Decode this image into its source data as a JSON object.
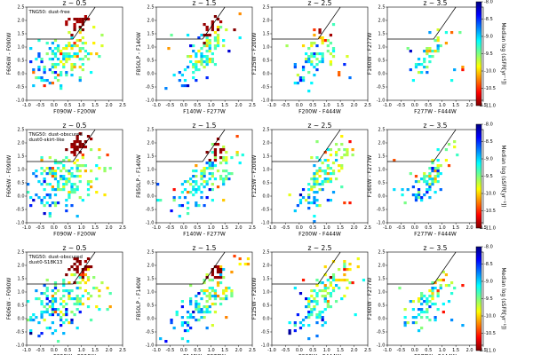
{
  "chart_data": {
    "type": "heatmap",
    "rows": [
      {
        "label_lines": [
          "TNG50: dust-free"
        ],
        "colorbar_label": "Median log (sSFR[yr⁻¹])",
        "panels": [
          {
            "title": "z ~ 0.5",
            "xlabel": "F090W - F200W",
            "ylabel": "F606W - F090W"
          },
          {
            "title": "z ~ 1.5",
            "xlabel": "F140W - F277W",
            "ylabel": "F850LP - F140W"
          },
          {
            "title": "z ~ 2.5",
            "xlabel": "F200W - F444W",
            "ylabel": "F125W - F200W"
          },
          {
            "title": "z ~ 3.5",
            "xlabel": "F277W - F444W",
            "ylabel": "F160W - F277W"
          }
        ]
      },
      {
        "label_lines": [
          "TNG50: dust-obscured",
          "dust0-skirt-like"
        ],
        "colorbar_label": "Median log (sSFR[yr⁻¹])",
        "panels": [
          {
            "title": "z ~ 0.5",
            "xlabel": "F090W - F200W",
            "ylabel": "F606W - F090W"
          },
          {
            "title": "z ~ 1.5",
            "xlabel": "F140W - F277W",
            "ylabel": "F850LP - F140W"
          },
          {
            "title": "z ~ 2.5",
            "xlabel": "F200W - F444W",
            "ylabel": "F125W - F200W"
          },
          {
            "title": "z ~ 3.5",
            "xlabel": "F277W - F444W",
            "ylabel": "F160W - F277W"
          }
        ]
      },
      {
        "label_lines": [
          "TNG50: dust-obscured",
          "dust0-S18K13"
        ],
        "colorbar_label": "Median log (sSFR[yr⁻¹])",
        "panels": [
          {
            "title": "z ~ 0.5",
            "xlabel": "F090W - F200W",
            "ylabel": "F606W - F090W"
          },
          {
            "title": "z ~ 1.5",
            "xlabel": "F140W - F277W",
            "ylabel": "F850LP - F140W"
          },
          {
            "title": "z ~ 2.5",
            "xlabel": "F200W - F444W",
            "ylabel": "F125W - F200W"
          },
          {
            "title": "z ~ 3.5",
            "xlabel": "F277W - F444W",
            "ylabel": "F160W - F277W"
          }
        ]
      }
    ],
    "xlim": [
      -1.0,
      2.5
    ],
    "ylim": [
      -1.0,
      2.5
    ],
    "xticks": [
      "-1.0",
      "-0.5",
      "0.0",
      "0.5",
      "1.0",
      "1.5",
      "2.0",
      "2.5"
    ],
    "yticks": [
      "-1.0",
      "-0.5",
      "0.0",
      "0.5",
      "1.0",
      "1.5",
      "2.0",
      "2.5"
    ],
    "quiescent_boundary": [
      [
        -1.0,
        1.3
      ],
      [
        0.69,
        1.3
      ],
      [
        1.5,
        2.5
      ]
    ],
    "colorbar": {
      "range": [
        -11.0,
        -8.0
      ],
      "ticks": [
        "-8.0",
        "-8.5",
        "-9.0",
        "-9.5",
        "-10.0",
        "-10.5",
        "-11.0"
      ],
      "colormap": "jet_r"
    },
    "distributions": [
      [
        {
          "sf_center": [
            0.35,
            0.55
          ],
          "sf_axis": [
            0.95,
            0.52
          ],
          "sf_len": 0.7,
          "sf_wid": 0.42,
          "n_sf": 150,
          "q_center": [
            0.92,
            1.95
          ],
          "q_axis": [
            0.5,
            0.5
          ],
          "q_len": 0.25,
          "q_wid": 0.18,
          "n_q": 34
        },
        {
          "sf_center": [
            0.7,
            0.6
          ],
          "sf_axis": [
            0.6,
            0.8
          ],
          "sf_len": 0.65,
          "sf_wid": 0.25,
          "n_sf": 100,
          "q_center": [
            1.05,
            1.75
          ],
          "q_axis": [
            0.6,
            0.8
          ],
          "q_len": 0.25,
          "q_wid": 0.15,
          "n_q": 20
        },
        {
          "sf_center": [
            0.6,
            0.7
          ],
          "sf_axis": [
            0.6,
            0.8
          ],
          "sf_len": 0.55,
          "sf_wid": 0.25,
          "n_sf": 70,
          "q_center": [
            0.95,
            1.45
          ],
          "q_axis": [
            0.6,
            0.8
          ],
          "q_len": 0.12,
          "q_wid": 0.1,
          "n_q": 3
        },
        {
          "sf_center": [
            0.5,
            0.6
          ],
          "sf_axis": [
            0.6,
            0.8
          ],
          "sf_len": 0.5,
          "sf_wid": 0.18,
          "n_sf": 40,
          "q_center": [
            0.6,
            1.4
          ],
          "q_axis": [
            0.6,
            0.8
          ],
          "q_len": 0.05,
          "q_wid": 0.05,
          "n_q": 0
        }
      ],
      [
        {
          "sf_center": [
            0.3,
            0.55
          ],
          "sf_axis": [
            0.9,
            0.5
          ],
          "sf_len": 0.8,
          "sf_wid": 0.48,
          "n_sf": 170,
          "q_center": [
            0.9,
            1.9
          ],
          "q_axis": [
            0.5,
            0.5
          ],
          "q_len": 0.25,
          "q_wid": 0.18,
          "n_q": 32
        },
        {
          "sf_center": [
            0.75,
            0.65
          ],
          "sf_axis": [
            0.65,
            0.75
          ],
          "sf_len": 0.8,
          "sf_wid": 0.32,
          "n_sf": 130,
          "q_center": [
            1.2,
            1.7
          ],
          "q_axis": [
            0.6,
            0.8
          ],
          "q_len": 0.25,
          "q_wid": 0.15,
          "n_q": 20
        },
        {
          "sf_center": [
            0.85,
            0.7
          ],
          "sf_axis": [
            0.6,
            0.8
          ],
          "sf_len": 0.8,
          "sf_wid": 0.3,
          "n_sf": 120,
          "q_center": [
            1.2,
            1.6
          ],
          "q_axis": [
            0.6,
            0.8
          ],
          "q_len": 0.08,
          "q_wid": 0.05,
          "n_q": 2
        },
        {
          "sf_center": [
            0.55,
            0.65
          ],
          "sf_axis": [
            0.6,
            0.8
          ],
          "sf_len": 0.65,
          "sf_wid": 0.22,
          "n_sf": 80,
          "q_center": [
            1.0,
            1.5
          ],
          "q_axis": [
            0.6,
            0.8
          ],
          "q_len": 0.05,
          "q_wid": 0.05,
          "n_q": 0
        }
      ],
      [
        {
          "sf_center": [
            0.3,
            0.55
          ],
          "sf_axis": [
            0.9,
            0.5
          ],
          "sf_len": 0.8,
          "sf_wid": 0.45,
          "n_sf": 170,
          "q_center": [
            0.95,
            1.95
          ],
          "q_axis": [
            0.5,
            0.5
          ],
          "q_len": 0.25,
          "q_wid": 0.18,
          "n_q": 32
        },
        {
          "sf_center": [
            0.75,
            0.65
          ],
          "sf_axis": [
            0.65,
            0.75
          ],
          "sf_len": 0.8,
          "sf_wid": 0.32,
          "n_sf": 130,
          "q_center": [
            1.2,
            1.75
          ],
          "q_axis": [
            0.6,
            0.8
          ],
          "q_len": 0.25,
          "q_wid": 0.15,
          "n_q": 20
        },
        {
          "sf_center": [
            0.85,
            0.75
          ],
          "sf_axis": [
            0.6,
            0.8
          ],
          "sf_len": 0.8,
          "sf_wid": 0.3,
          "n_sf": 120,
          "q_center": [
            1.2,
            1.6
          ],
          "q_axis": [
            0.6,
            0.8
          ],
          "q_len": 0.08,
          "q_wid": 0.05,
          "n_q": 2
        },
        {
          "sf_center": [
            0.55,
            0.7
          ],
          "sf_axis": [
            0.6,
            0.8
          ],
          "sf_len": 0.65,
          "sf_wid": 0.22,
          "n_sf": 80,
          "q_center": [
            1.0,
            1.5
          ],
          "q_axis": [
            0.6,
            0.8
          ],
          "q_len": 0.05,
          "q_wid": 0.05,
          "n_q": 0
        }
      ]
    ]
  }
}
